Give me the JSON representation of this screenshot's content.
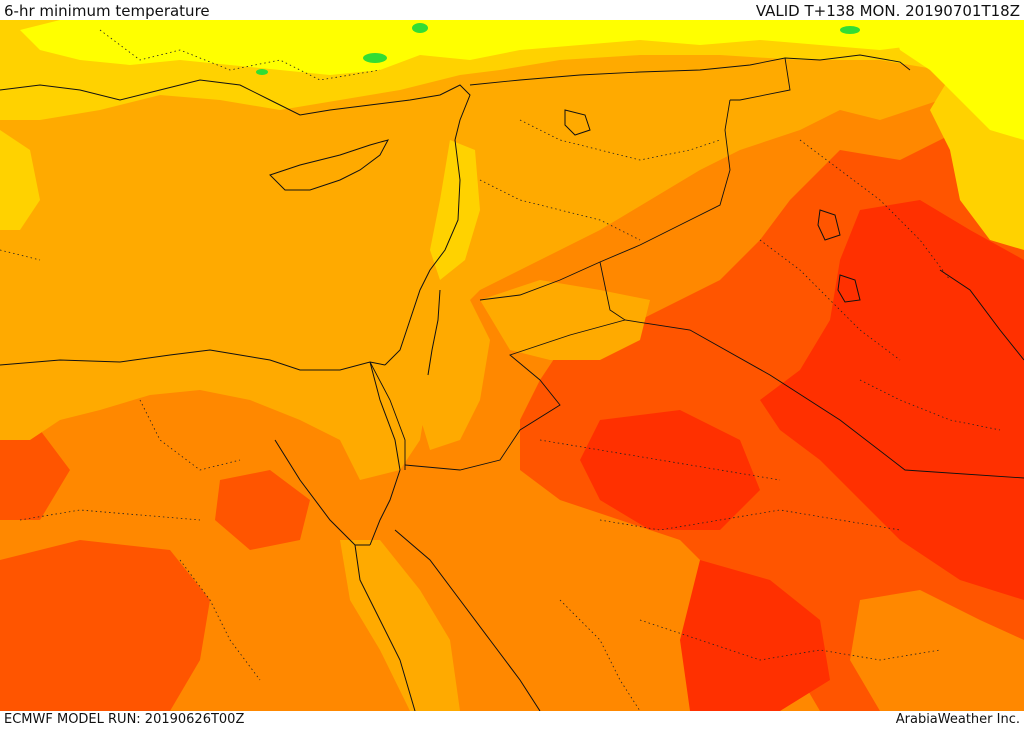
{
  "header": {
    "title": "6-hr minimum temperature",
    "valid": "VALID T+138 MON. 20190701T18Z"
  },
  "footer": {
    "model_run": "ECMWF MODEL RUN: 20190626T00Z",
    "credit": "ArabiaWeather Inc."
  },
  "palette": {
    "very_hot": "#ff3000",
    "hot": "#ff5500",
    "warm": "#ff8800",
    "mild": "#ffaa00",
    "cool": "#ffd200",
    "cooler": "#ffff00",
    "coolest": "#33dd33"
  },
  "legend": {
    "items": []
  }
}
